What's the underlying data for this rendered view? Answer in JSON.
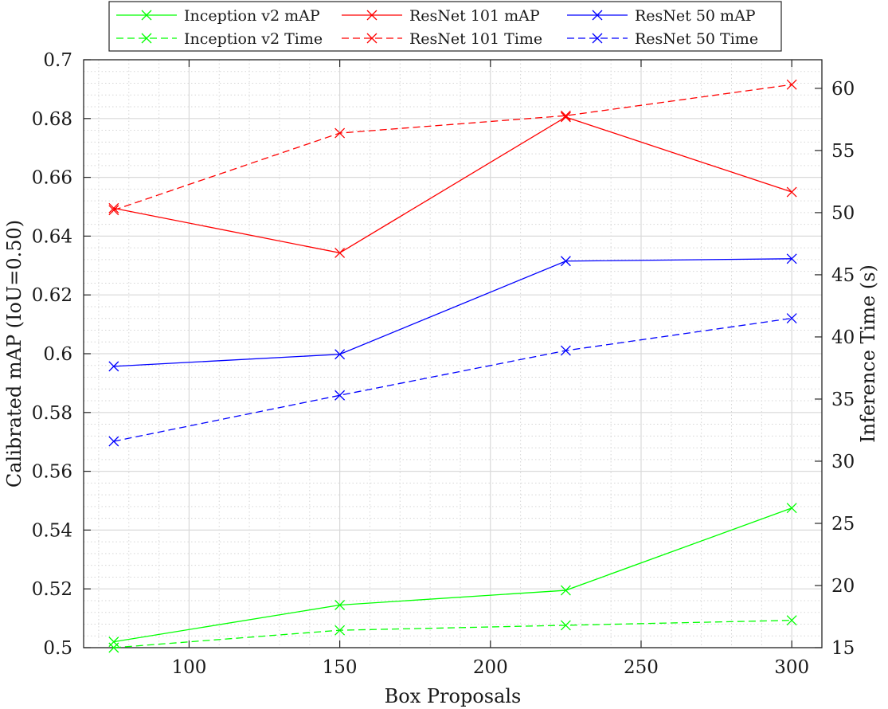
{
  "chart_data": {
    "type": "line",
    "xlabel": "Box Proposals",
    "ylabel_left": "Calibrated mAP (IoU=0.50)",
    "ylabel_right": "Inference Time (s)",
    "x": [
      75,
      150,
      225,
      300
    ],
    "xlim": [
      65,
      310
    ],
    "ylim_left": [
      0.5,
      0.7
    ],
    "ylim_right": [
      15,
      62.3
    ],
    "x_ticks": [
      "100",
      "150",
      "200",
      "250",
      "300"
    ],
    "y_left_ticks": [
      "0.5",
      "0.52",
      "0.54",
      "0.56",
      "0.58",
      "0.6",
      "0.62",
      "0.64",
      "0.66",
      "0.68",
      "0.7"
    ],
    "y_right_ticks": [
      "15",
      "20",
      "25",
      "30",
      "35",
      "40",
      "45",
      "50",
      "55",
      "60"
    ],
    "grid": true,
    "minor_grid": true,
    "legend_position": "top-center",
    "series": [
      {
        "name": "Inception v2 mAP",
        "axis": "left",
        "color": "#00ff00",
        "dashed": false,
        "values": [
          0.502,
          0.5145,
          0.5195,
          0.5475
        ]
      },
      {
        "name": "ResNet 101 mAP",
        "axis": "left",
        "color": "#ff0000",
        "dashed": false,
        "values": [
          0.6495,
          0.6343,
          0.6805,
          0.655
        ]
      },
      {
        "name": "ResNet 50 mAP",
        "axis": "left",
        "color": "#0000ff",
        "dashed": false,
        "values": [
          0.5957,
          0.5998,
          0.6315,
          0.6323
        ]
      },
      {
        "name": "Inception v2 Time",
        "axis": "right",
        "color": "#00ff00",
        "dashed": true,
        "values": [
          15.0,
          16.4,
          16.8,
          17.2
        ]
      },
      {
        "name": "ResNet 101 Time",
        "axis": "right",
        "color": "#ff0000",
        "dashed": true,
        "values": [
          50.2,
          56.4,
          57.8,
          60.3
        ]
      },
      {
        "name": "ResNet 50 Time",
        "axis": "right",
        "color": "#0000ff",
        "dashed": true,
        "values": [
          31.6,
          35.3,
          38.9,
          41.5
        ]
      }
    ]
  }
}
